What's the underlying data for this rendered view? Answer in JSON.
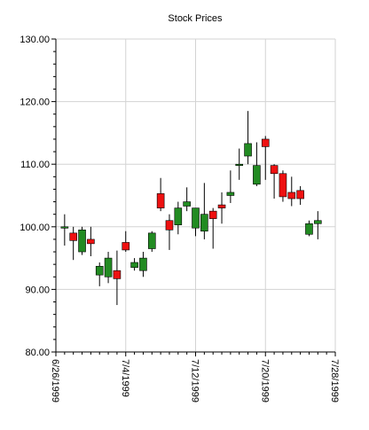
{
  "chart_data": {
    "type": "candlestick",
    "title": "Stock Prices",
    "xlabel": "",
    "ylabel": "",
    "ylim": [
      80,
      130
    ],
    "y_ticks": [
      "80.00",
      "90.00",
      "100.00",
      "110.00",
      "120.00",
      "130.00"
    ],
    "x_range": [
      "1999-06-26",
      "1999-07-28"
    ],
    "x_ticks": [
      "6/26/1999",
      "7/4/1999",
      "7/12/1999",
      "7/20/1999",
      "7/28/1999"
    ],
    "grid": true,
    "colors": {
      "up": "#228b22",
      "down": "#ee1111",
      "wick": "#000000",
      "grid": "#d3d3d3"
    },
    "series": [
      {
        "date": "1999-06-27",
        "open": 99.8,
        "high": 102.0,
        "low": 97.0,
        "close": 100.0
      },
      {
        "date": "1999-06-28",
        "open": 99.0,
        "high": 100.0,
        "low": 94.7,
        "close": 97.8
      },
      {
        "date": "1999-06-29",
        "open": 96.0,
        "high": 100.0,
        "low": 95.5,
        "close": 99.5
      },
      {
        "date": "1999-06-30",
        "open": 98.0,
        "high": 100.0,
        "low": 95.3,
        "close": 97.3
      },
      {
        "date": "1999-07-01",
        "open": 92.3,
        "high": 94.3,
        "low": 90.5,
        "close": 93.7
      },
      {
        "date": "1999-07-02",
        "open": 92.0,
        "high": 96.0,
        "low": 91.0,
        "close": 95.0
      },
      {
        "date": "1999-07-03",
        "open": 93.0,
        "high": 96.2,
        "low": 87.5,
        "close": 91.7
      },
      {
        "date": "1999-07-04",
        "open": 97.5,
        "high": 99.3,
        "low": 96.0,
        "close": 96.3
      },
      {
        "date": "1999-07-05",
        "open": 93.5,
        "high": 95.0,
        "low": 93.0,
        "close": 94.3
      },
      {
        "date": "1999-07-06",
        "open": 93.0,
        "high": 96.0,
        "low": 92.0,
        "close": 95.0
      },
      {
        "date": "1999-07-07",
        "open": 96.5,
        "high": 99.3,
        "low": 96.0,
        "close": 99.0
      },
      {
        "date": "1999-07-08",
        "open": 105.3,
        "high": 107.8,
        "low": 102.5,
        "close": 103.0
      },
      {
        "date": "1999-07-09",
        "open": 101.0,
        "high": 102.0,
        "low": 96.3,
        "close": 99.5
      },
      {
        "date": "1999-07-10",
        "open": 100.3,
        "high": 104.0,
        "low": 98.8,
        "close": 103.0
      },
      {
        "date": "1999-07-11",
        "open": 103.3,
        "high": 106.3,
        "low": 102.5,
        "close": 104.0
      },
      {
        "date": "1999-07-12",
        "open": 99.8,
        "high": 103.0,
        "low": 98.5,
        "close": 103.0
      },
      {
        "date": "1999-07-13",
        "open": 99.3,
        "high": 107.0,
        "low": 98.0,
        "close": 102.0
      },
      {
        "date": "1999-07-14",
        "open": 102.5,
        "high": 103.0,
        "low": 96.5,
        "close": 101.3
      },
      {
        "date": "1999-07-15",
        "open": 103.5,
        "high": 105.5,
        "low": 100.5,
        "close": 103.0
      },
      {
        "date": "1999-07-16",
        "open": 105.0,
        "high": 109.0,
        "low": 103.8,
        "close": 105.5
      },
      {
        "date": "1999-07-17",
        "open": 110.0,
        "high": 112.5,
        "low": 107.5,
        "close": 110.0
      },
      {
        "date": "1999-07-18",
        "open": 111.3,
        "high": 118.5,
        "low": 110.0,
        "close": 113.3
      },
      {
        "date": "1999-07-19",
        "open": 106.8,
        "high": 113.5,
        "low": 106.5,
        "close": 109.8
      },
      {
        "date": "1999-07-20",
        "open": 114.0,
        "high": 114.5,
        "low": 107.5,
        "close": 112.8
      },
      {
        "date": "1999-07-21",
        "open": 109.8,
        "high": 110.0,
        "low": 104.5,
        "close": 108.5
      },
      {
        "date": "1999-07-22",
        "open": 108.5,
        "high": 109.0,
        "low": 104.0,
        "close": 104.8
      },
      {
        "date": "1999-07-23",
        "open": 105.5,
        "high": 108.0,
        "low": 103.3,
        "close": 104.5
      },
      {
        "date": "1999-07-24",
        "open": 105.8,
        "high": 106.5,
        "low": 103.5,
        "close": 104.5
      },
      {
        "date": "1999-07-25",
        "open": 98.8,
        "high": 101.0,
        "low": 98.5,
        "close": 100.5
      },
      {
        "date": "1999-07-26",
        "open": 100.5,
        "high": 102.5,
        "low": 98.0,
        "close": 101.0
      }
    ]
  }
}
